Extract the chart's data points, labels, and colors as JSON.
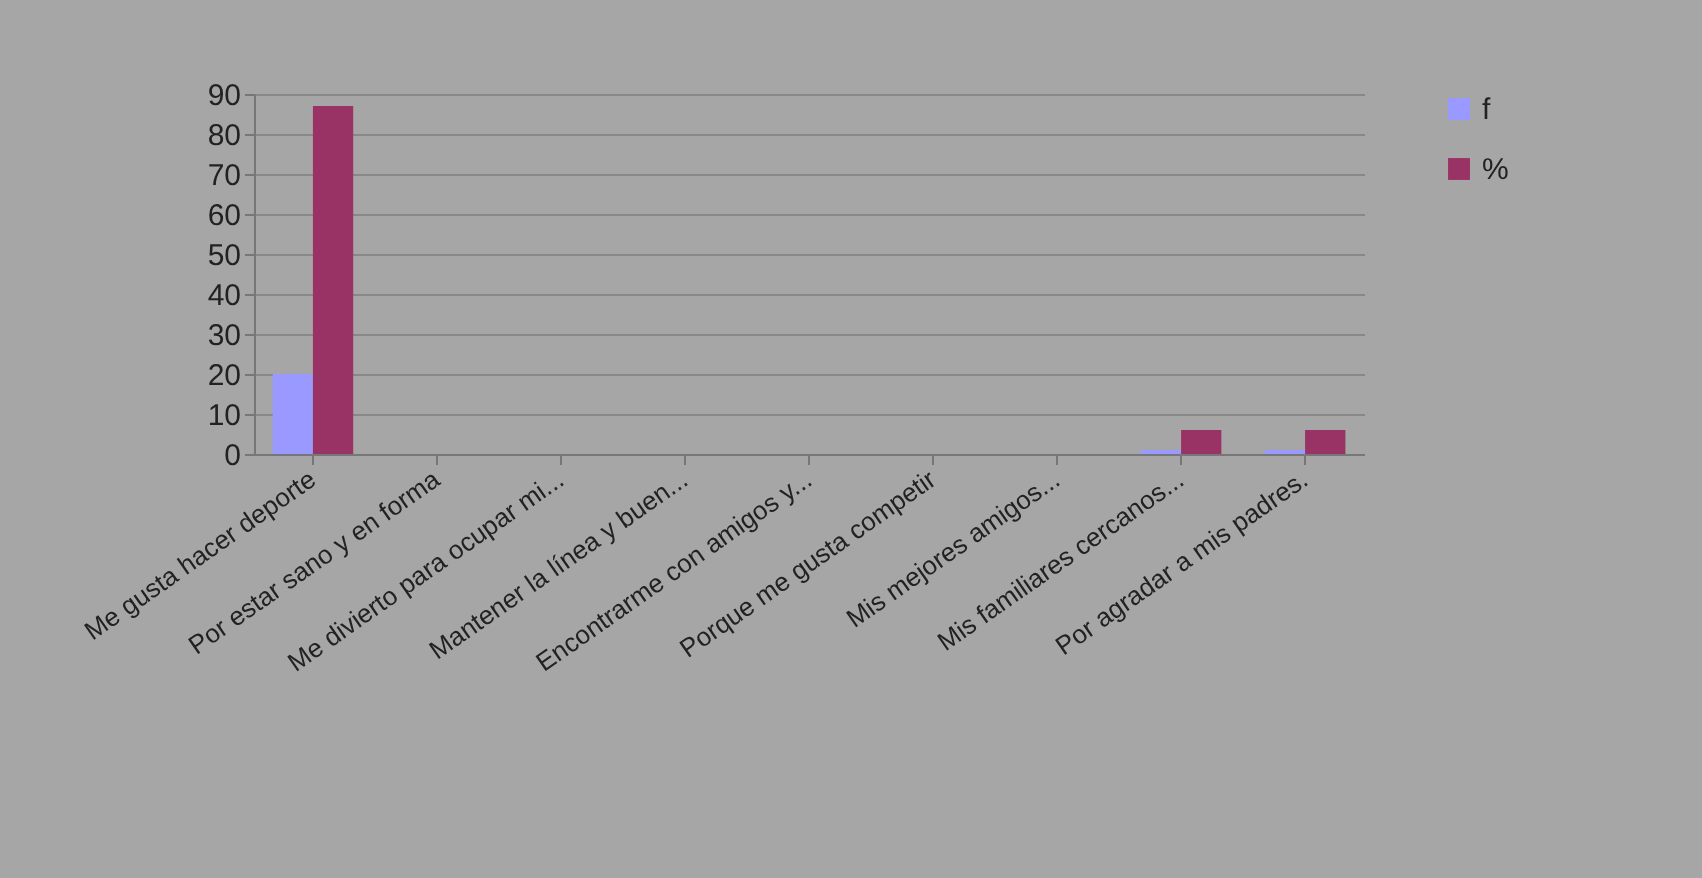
{
  "chart_data": {
    "type": "bar",
    "categories": [
      "Me gusta hacer deporte",
      "Por estar sano y en forma",
      "Me divierto para ocupar mi...",
      "Mantener la línea y buen...",
      "Encontrarme con amigos y...",
      "Porque me gusta competir",
      "Mis mejores amigos...",
      "Mis familiares cercanos...",
      "Por agradar a mis padres."
    ],
    "series": [
      {
        "name": "f",
        "color": "#9999ff",
        "values": [
          20,
          0,
          0,
          0,
          0,
          0,
          0,
          1,
          1
        ]
      },
      {
        "name": "%",
        "color": "#993366",
        "values": [
          87,
          0,
          0,
          0,
          0,
          0,
          0,
          6,
          6
        ]
      }
    ],
    "ylim": [
      0,
      90
    ],
    "yticks": [
      0,
      10,
      20,
      30,
      40,
      50,
      60,
      70,
      80,
      90
    ],
    "grid": "y",
    "legend": "right"
  }
}
